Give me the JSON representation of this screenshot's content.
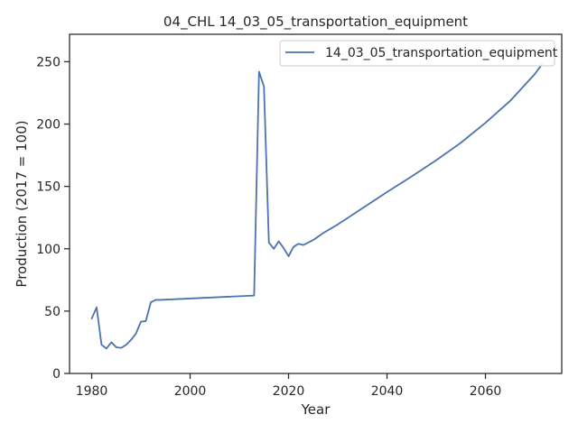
{
  "chart_data": {
    "type": "line",
    "title": "04_CHL 14_03_05_transportation_equipment",
    "xlabel": "Year",
    "ylabel": "Production (2017 = 100)",
    "xlim": [
      1975.5,
      2075.5
    ],
    "ylim": [
      0,
      272
    ],
    "xticks": [
      1980,
      2000,
      2020,
      2040,
      2060
    ],
    "yticks": [
      0,
      50,
      100,
      150,
      200,
      250
    ],
    "grid": false,
    "legend_position": "upper right",
    "series": [
      {
        "name": "14_03_05_transportation_equipment",
        "color": "#4c72b0",
        "points": [
          [
            1980,
            44
          ],
          [
            1981,
            53
          ],
          [
            1982,
            23
          ],
          [
            1983,
            20
          ],
          [
            1984,
            25
          ],
          [
            1985,
            21
          ],
          [
            1986,
            20.5
          ],
          [
            1987,
            23
          ],
          [
            1988,
            27
          ],
          [
            1989,
            32
          ],
          [
            1990,
            41.5
          ],
          [
            1991,
            42
          ],
          [
            1992,
            57
          ],
          [
            1993,
            59
          ],
          [
            1994,
            59
          ],
          [
            2013,
            62.5
          ],
          [
            2014,
            242
          ],
          [
            2015,
            230
          ],
          [
            2016,
            105
          ],
          [
            2017,
            100
          ],
          [
            2018,
            106
          ],
          [
            2019,
            100.5
          ],
          [
            2020,
            94
          ],
          [
            2021,
            101.5
          ],
          [
            2022,
            104
          ],
          [
            2023,
            103
          ],
          [
            2025,
            107
          ],
          [
            2027,
            112.5
          ],
          [
            2030,
            119.5
          ],
          [
            2035,
            132.5
          ],
          [
            2040,
            145.5
          ],
          [
            2045,
            158
          ],
          [
            2050,
            171
          ],
          [
            2055,
            185
          ],
          [
            2060,
            201
          ],
          [
            2065,
            218.5
          ],
          [
            2070,
            240
          ],
          [
            2071.5,
            248
          ]
        ]
      }
    ]
  }
}
